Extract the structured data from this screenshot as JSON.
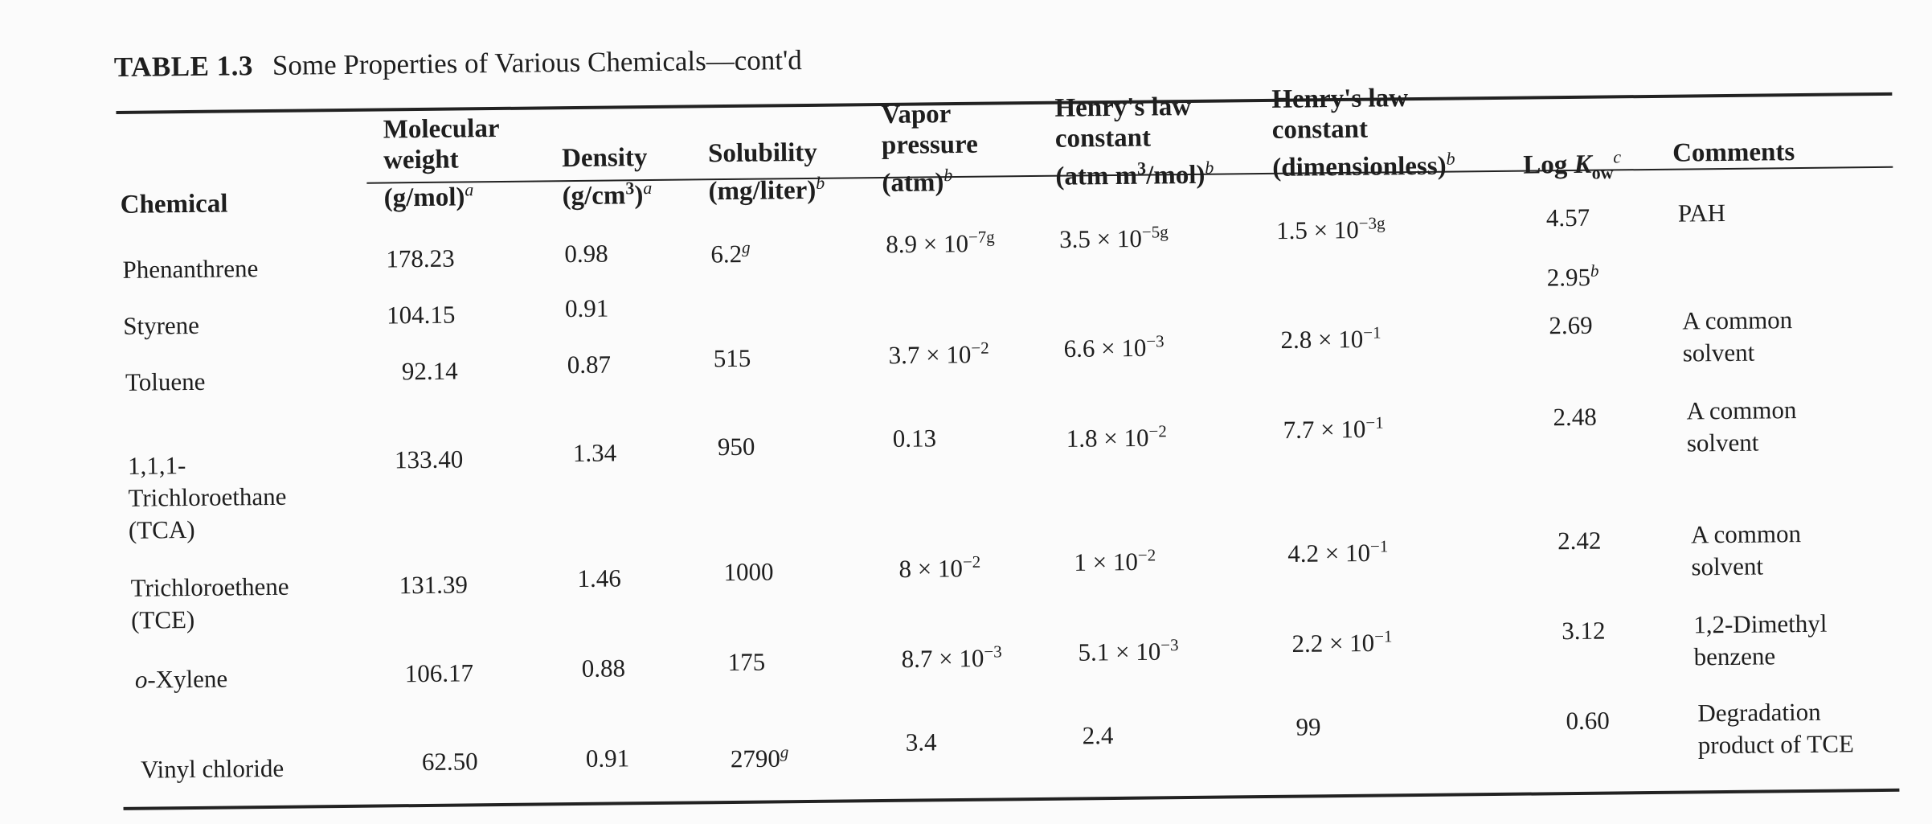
{
  "table": {
    "label": "TABLE 1.3",
    "title": "Some Properties of Various Chemicals—cont'd",
    "headers": {
      "chemical": "Chemical",
      "mw_line1": "Molecular",
      "mw_line2": "weight",
      "mw_line3": "(g/mol)",
      "mw_fn": "a",
      "density_line1": "Density",
      "density_line2a": "(g/cm",
      "density_sup": "3",
      "density_line2b": ")",
      "density_fn": "a",
      "solubility_line1": "Solubility",
      "solubility_line2": "(mg/liter)",
      "solubility_fn": "b",
      "vp_line1": "Vapor",
      "vp_line2": "pressure",
      "vp_line3": "(atm)",
      "vp_fn": "b",
      "henry1_line1": "Henry's law",
      "henry1_line2": "constant",
      "henry1_line3a": "(atm m",
      "henry1_sup": "3",
      "henry1_line3b": "/mol)",
      "henry1_fn": "b",
      "henry2_line1": "Henry's law",
      "henry2_line2": "constant",
      "henry2_line3": "(dimensionless)",
      "henry2_fn": "b",
      "logkow_a": "Log ",
      "logkow_k": "K",
      "logkow_sub": "ow",
      "logkow_fn": "c",
      "comments": "Comments"
    },
    "rows": [
      {
        "chemical": "Phenanthrene",
        "mw": "178.23",
        "density": "0.98",
        "solubility": "6.2",
        "solubility_fn": "g",
        "vp_mant": "8.9 × 10",
        "vp_exp": "−7g",
        "h1_mant": "3.5 × 10",
        "h1_exp": "−5g",
        "h2_mant": "1.5 × 10",
        "h2_exp": "−3g",
        "logkow": "4.57",
        "logkow2": "2.95",
        "logkow2_fn": "b",
        "comment": "PAH"
      },
      {
        "chemical": "Styrene",
        "mw": "104.15",
        "density": "0.91"
      },
      {
        "chemical": "Toluene",
        "mw": "92.14",
        "density": "0.87",
        "solubility": "515",
        "vp_mant": "3.7 × 10",
        "vp_exp": "−2",
        "h1_mant": "6.6 × 10",
        "h1_exp": "−3",
        "h2_mant": "2.8 × 10",
        "h2_exp": "−1",
        "logkow": "2.69",
        "comment_line1": "A common",
        "comment_line2": "solvent"
      },
      {
        "chemical_line1": "1,1,1-",
        "chemical_line2": "Trichloroethane",
        "chemical_line3": "(TCA)",
        "mw": "133.40",
        "density": "1.34",
        "solubility": "950",
        "vp": "0.13",
        "h1_mant": "1.8 × 10",
        "h1_exp": "−2",
        "h2_mant": "7.7 × 10",
        "h2_exp": "−1",
        "logkow": "2.48",
        "comment_line1": "A common",
        "comment_line2": "solvent"
      },
      {
        "chemical_line1": "Trichloroethene",
        "chemical_line2": "(TCE)",
        "mw": "131.39",
        "density": "1.46",
        "solubility": "1000",
        "vp_mant": "8 × 10",
        "vp_exp": "−2",
        "h1_mant": "1 × 10",
        "h1_exp": "−2",
        "h2_mant": "4.2 × 10",
        "h2_exp": "−1",
        "logkow": "2.42",
        "comment_line1": "A common",
        "comment_line2": "solvent"
      },
      {
        "chemical_prefix": "o",
        "chemical_rest": "-Xylene",
        "mw": "106.17",
        "density": "0.88",
        "solubility": "175",
        "vp_mant": "8.7 × 10",
        "vp_exp": "−3",
        "h1_mant": "5.1 × 10",
        "h1_exp": "−3",
        "h2_mant": "2.2 × 10",
        "h2_exp": "−1",
        "logkow": "3.12",
        "comment_line1": "1,2-Dimethyl",
        "comment_line2": "benzene"
      },
      {
        "chemical": "Vinyl chloride",
        "mw": "62.50",
        "density": "0.91",
        "solubility": "2790",
        "solubility_fn": "g",
        "vp": "3.4",
        "h1": "2.4",
        "h2": "99",
        "logkow": "0.60",
        "comment_line1": "Degradation",
        "comment_line2": "product of TCE"
      }
    ]
  }
}
